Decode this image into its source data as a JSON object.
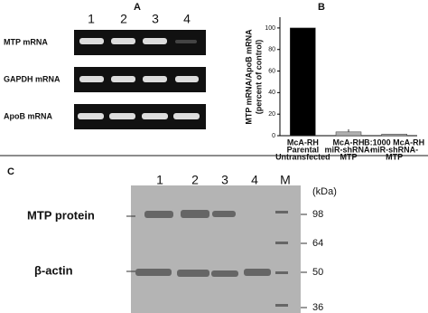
{
  "panel_a": {
    "label": "A",
    "lanes": [
      "1",
      "2",
      "3",
      "4"
    ],
    "rows": [
      "MTP mRNA",
      "GAPDH mRNA",
      "ApoB mRNA"
    ]
  },
  "chart_data": {
    "type": "bar",
    "label": "B",
    "ylabel": [
      "MTP mRNA/ApoB mRNA",
      "(percent of control)"
    ],
    "categories": [
      [
        "McA-RH",
        "Parental",
        "Untransfected"
      ],
      [
        "McA-RH",
        "miR-shRNA-",
        "MTP"
      ],
      [
        "B:1000 McA-RH",
        "miR-shRNA-",
        "MTP"
      ]
    ],
    "values": [
      100,
      3.5,
      1.5
    ],
    "errors": [
      0,
      2.5,
      0
    ],
    "colors": [
      "#000000",
      "#b0b0b0",
      "#b0b0b0"
    ],
    "ylim": [
      0,
      110
    ],
    "yticks": [
      0,
      20,
      40,
      60,
      80,
      100
    ]
  },
  "panel_c": {
    "label": "C",
    "lanes": [
      "1",
      "2",
      "3",
      "4",
      "M"
    ],
    "unit": "(kDa)",
    "markers": [
      "98",
      "64",
      "50",
      "36"
    ],
    "rows": [
      "MTP protein",
      "β-actin"
    ]
  }
}
